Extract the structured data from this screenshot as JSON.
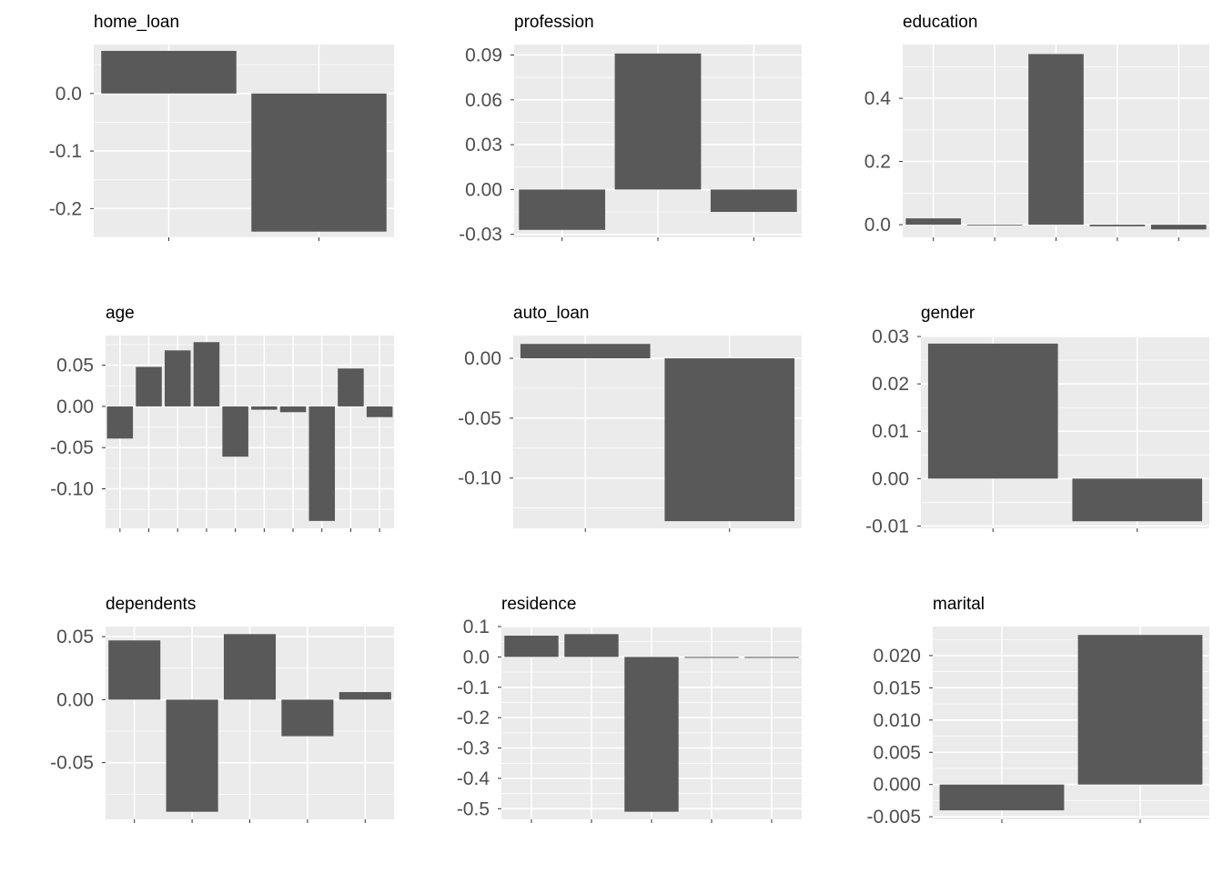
{
  "colors": {
    "panel_background": "#ebebeb",
    "grid": "#ffffff",
    "bar": "#595959",
    "tick_text": "#4d4d4d",
    "title_text": "#000000"
  },
  "chart_data": [
    {
      "type": "bar",
      "title": "home_loan",
      "xlabel": "",
      "ylabel": "",
      "grid": true,
      "values": [
        0.074,
        -0.24
      ],
      "ylim": [
        -0.25,
        0.085
      ],
      "yticks": [
        0.0,
        -0.1,
        -0.2
      ],
      "ytick_labels": [
        "0.0",
        "-0.1",
        "-0.2"
      ]
    },
    {
      "type": "bar",
      "title": "profession",
      "xlabel": "",
      "ylabel": "",
      "grid": true,
      "values": [
        -0.027,
        0.091,
        -0.015
      ],
      "ylim": [
        -0.032,
        0.097
      ],
      "yticks": [
        0.09,
        0.06,
        0.03,
        0.0,
        -0.03
      ],
      "ytick_labels": [
        "0.09",
        "0.06",
        "0.03",
        "0.00",
        "-0.03"
      ]
    },
    {
      "type": "bar",
      "title": "education",
      "xlabel": "",
      "ylabel": "",
      "grid": true,
      "values": [
        0.02,
        0.0,
        0.54,
        -0.005,
        -0.015
      ],
      "ylim": [
        -0.04,
        0.57
      ],
      "yticks": [
        0.4,
        0.2,
        0.0
      ],
      "ytick_labels": [
        "0.4",
        "0.2",
        "0.0"
      ]
    },
    {
      "type": "bar",
      "title": "age",
      "xlabel": "",
      "ylabel": "",
      "grid": true,
      "values": [
        -0.039,
        0.048,
        0.068,
        0.078,
        -0.061,
        -0.004,
        -0.007,
        -0.139,
        0.046,
        -0.013
      ],
      "ylim": [
        -0.148,
        0.086
      ],
      "yticks": [
        0.05,
        0.0,
        -0.05,
        -0.1
      ],
      "ytick_labels": [
        "0.05",
        "0.00",
        "-0.05",
        "-0.10"
      ]
    },
    {
      "type": "bar",
      "title": "auto_loan",
      "xlabel": "",
      "ylabel": "",
      "grid": true,
      "values": [
        0.012,
        -0.136
      ],
      "ylim": [
        -0.142,
        0.019
      ],
      "yticks": [
        0.0,
        -0.05,
        -0.1
      ],
      "ytick_labels": [
        "0.00",
        "-0.05",
        "-0.10"
      ]
    },
    {
      "type": "bar",
      "title": "gender",
      "xlabel": "",
      "ylabel": "",
      "grid": true,
      "values": [
        0.0285,
        -0.009
      ],
      "ylim": [
        -0.0105,
        0.0302
      ],
      "yticks": [
        0.03,
        0.02,
        0.01,
        0.0,
        -0.01
      ],
      "ytick_labels": [
        "0.03",
        "0.02",
        "0.01",
        "0.00",
        "-0.01"
      ]
    },
    {
      "type": "bar",
      "title": "dependents",
      "xlabel": "",
      "ylabel": "",
      "grid": true,
      "values": [
        0.047,
        -0.089,
        0.052,
        -0.029,
        0.006
      ],
      "ylim": [
        -0.095,
        0.058
      ],
      "yticks": [
        0.05,
        0.0,
        -0.05
      ],
      "ytick_labels": [
        "0.05",
        "0.00",
        "-0.05"
      ]
    },
    {
      "type": "bar",
      "title": "residence",
      "xlabel": "",
      "ylabel": "",
      "grid": true,
      "values": [
        0.07,
        0.075,
        -0.51,
        -0.003,
        -0.003
      ],
      "ylim": [
        -0.535,
        0.1
      ],
      "yticks": [
        0.1,
        0.0,
        -0.1,
        -0.2,
        -0.3,
        -0.4,
        -0.5
      ],
      "ytick_labels": [
        "0.1",
        "0.0",
        "-0.1",
        "-0.2",
        "-0.3",
        "-0.4",
        "-0.5"
      ]
    },
    {
      "type": "bar",
      "title": "marital",
      "xlabel": "",
      "ylabel": "",
      "grid": true,
      "values": [
        -0.004,
        0.0232
      ],
      "ylim": [
        -0.0054,
        0.0245
      ],
      "yticks": [
        0.02,
        0.015,
        0.01,
        0.005,
        0.0,
        -0.005
      ],
      "ytick_labels": [
        "0.020",
        "0.015",
        "0.010",
        "0.005",
        "0.000",
        "-0.005"
      ]
    }
  ]
}
